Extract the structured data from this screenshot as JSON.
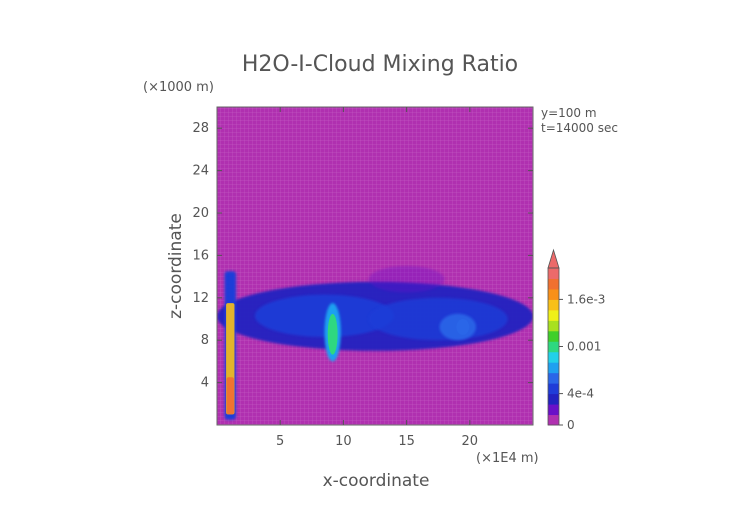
{
  "chart_data": {
    "type": "heatmap",
    "title": "H2O-I-Cloud Mixing Ratio",
    "y_unit": "(×1000 m)",
    "x_unit": "(×1E4 m)",
    "xlabel": "x-coordinate",
    "ylabel": "z-coordinate",
    "annotations": [
      "y=100 m",
      "t=14000 sec"
    ],
    "xlim": [
      0,
      25
    ],
    "ylim": [
      0,
      30
    ],
    "x_ticks": [
      5,
      10,
      15,
      20
    ],
    "y_ticks": [
      4,
      8,
      12,
      16,
      20,
      24,
      28
    ],
    "colorbar": {
      "tick_labels": [
        "0",
        "4e-4",
        "0.001",
        "1.6e-3"
      ],
      "tick_values": [
        0,
        0.0004,
        0.001,
        0.0016
      ],
      "range": [
        0,
        0.002
      ],
      "colors": [
        "#b030b0",
        "#6a10c8",
        "#2222c0",
        "#1f3cd8",
        "#2a66e8",
        "#1fa0f0",
        "#22d0e8",
        "#2ed880",
        "#3fcf2a",
        "#a8e020",
        "#f0f018",
        "#f8c018",
        "#f89018",
        "#f07030",
        "#ec6a6a"
      ],
      "extend_max": true
    },
    "background_value": 0,
    "features": [
      {
        "label": "cloud layer",
        "x": [
          0.0,
          25.0
        ],
        "z": [
          7.0,
          13.5
        ],
        "value": 0.0003
      },
      {
        "label": "left column",
        "x": [
          0.6,
          1.5
        ],
        "z": [
          0.5,
          14.5
        ],
        "value": 0.0016
      },
      {
        "label": "core near x=9",
        "x": [
          8.5,
          9.8
        ],
        "z": [
          6.0,
          11.5
        ],
        "value": 0.001
      },
      {
        "label": "core near x=19",
        "x": [
          17.6,
          20.5
        ],
        "z": [
          8.0,
          10.5
        ],
        "value": 0.0006
      },
      {
        "label": "anvil top",
        "x": [
          12.0,
          18.0
        ],
        "z": [
          12.5,
          15.0
        ],
        "value": 0.0001
      }
    ]
  }
}
